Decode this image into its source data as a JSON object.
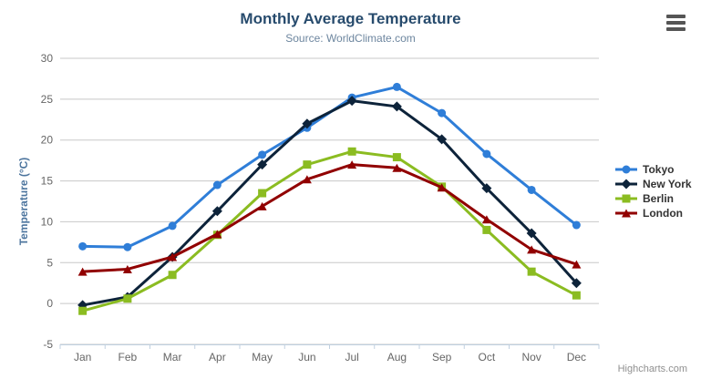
{
  "chart_data": {
    "type": "line",
    "title": "Monthly Average Temperature",
    "subtitle": "Source: WorldClimate.com",
    "categories": [
      "Jan",
      "Feb",
      "Mar",
      "Apr",
      "May",
      "Jun",
      "Jul",
      "Aug",
      "Sep",
      "Oct",
      "Nov",
      "Dec"
    ],
    "xlabel": "",
    "ylabel": "Temperature (°C)",
    "ylim": [
      -5,
      30
    ],
    "ytick_step": 5,
    "ytick_labels": [
      "-5",
      "0",
      "5",
      "10",
      "15",
      "20",
      "25",
      "30"
    ],
    "grid": true,
    "legend_position": "right",
    "series": [
      {
        "name": "Tokyo",
        "color": "#2f7ed8",
        "marker": "circle",
        "values": [
          7.0,
          6.9,
          9.5,
          14.5,
          18.2,
          21.5,
          25.2,
          26.5,
          23.3,
          18.3,
          13.9,
          9.6
        ]
      },
      {
        "name": "New York",
        "color": "#0d233a",
        "marker": "diamond",
        "values": [
          -0.2,
          0.8,
          5.7,
          11.3,
          17.0,
          22.0,
          24.8,
          24.1,
          20.1,
          14.1,
          8.6,
          2.5
        ]
      },
      {
        "name": "Berlin",
        "color": "#8bbc21",
        "marker": "square",
        "values": [
          -0.9,
          0.6,
          3.5,
          8.4,
          13.5,
          17.0,
          18.6,
          17.9,
          14.3,
          9.0,
          3.9,
          1.0
        ]
      },
      {
        "name": "London",
        "color": "#910000",
        "marker": "triangle",
        "values": [
          3.9,
          4.2,
          5.7,
          8.5,
          11.9,
          15.2,
          17.0,
          16.6,
          14.2,
          10.3,
          6.6,
          4.8
        ]
      }
    ],
    "colors": {
      "title": "#274b6d",
      "subtitle": "#6d869f",
      "axis_labels": "#666666",
      "axis_title": "#4d759e",
      "gridline": "#c8c8c8",
      "axis_line": "#c0d0e0",
      "legend_text": "#333333",
      "credits": "#909090"
    }
  },
  "export_menu": {
    "icon": "hamburger-icon"
  },
  "credits": {
    "label": "Highcharts.com"
  }
}
